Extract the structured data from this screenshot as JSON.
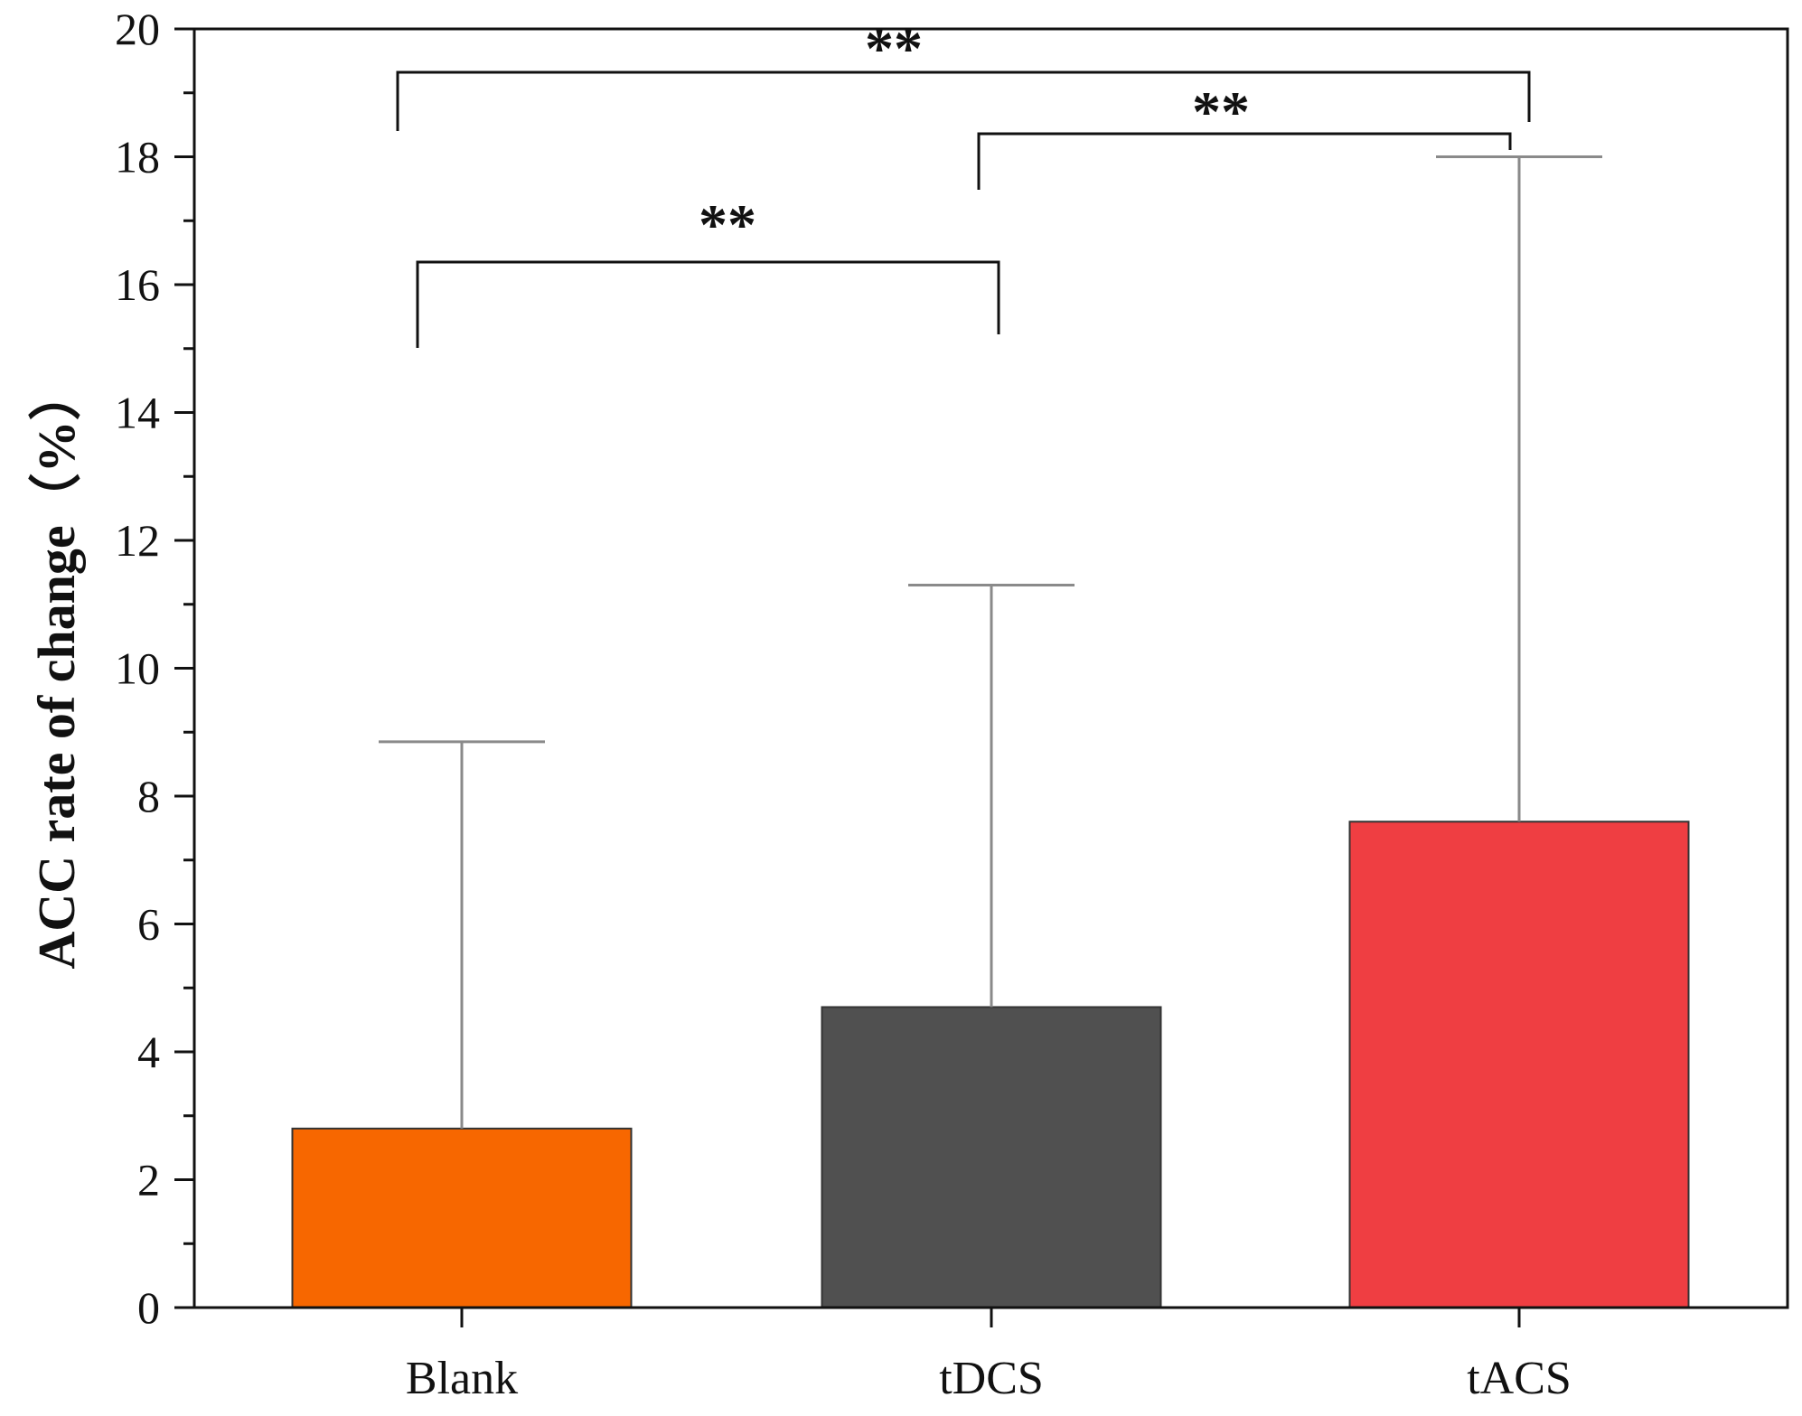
{
  "chart_data": {
    "type": "bar",
    "categories": [
      "Blank",
      "tDCS",
      "tACS"
    ],
    "values": [
      2.8,
      4.7,
      7.6
    ],
    "error_upper": [
      8.85,
      11.3,
      18.0
    ],
    "colors": [
      "#f76700",
      "#505050",
      "#ef3e42"
    ],
    "ylabel": "ACC rate of change（%）",
    "ylim": [
      0,
      20
    ],
    "yticks": [
      "0",
      "2",
      "4",
      "6",
      "8",
      "10",
      "12",
      "14",
      "16",
      "18",
      "20"
    ],
    "grid": false,
    "significance": [
      {
        "from": 0,
        "to": 1,
        "label": "**",
        "y": 16.4
      },
      {
        "from": 1,
        "to": 2,
        "label": "**",
        "y": 18.7
      },
      {
        "from": 0,
        "to": 2,
        "label": "**",
        "y": 19.7
      }
    ]
  }
}
